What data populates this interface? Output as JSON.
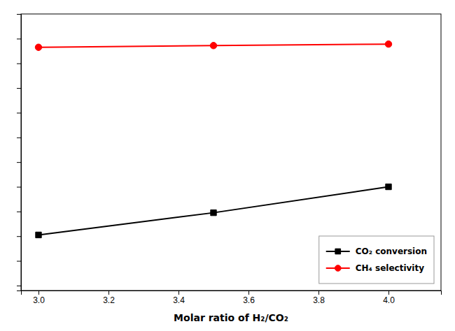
{
  "chart_data": {
    "type": "line",
    "xlabel": "Molar ratio of H₂/CO₂",
    "x": [
      3.0,
      3.5,
      4.0
    ],
    "series": [
      {
        "name": "CO₂ conversion",
        "color": "black",
        "marker": "square",
        "values": [
          20.5,
          29.5,
          40.0
        ]
      },
      {
        "name": "CH₄ selectivity",
        "color": "red",
        "marker": "circle",
        "values": [
          96.5,
          97.2,
          97.8
        ]
      }
    ],
    "xlim": [
      2.95,
      4.15
    ],
    "ylim": [
      -2,
      110
    ],
    "xticks": [
      {
        "value": 3.0,
        "label": "3.0"
      },
      3.2,
      3.4,
      3.6,
      3.8,
      {
        "value": 4.0,
        "label": "4.0"
      }
    ],
    "yticks": [
      0,
      10,
      20,
      30,
      40,
      50,
      60,
      70,
      80,
      90,
      100
    ],
    "tick_labels": "x",
    "legend": "lower right",
    "grid": false
  }
}
